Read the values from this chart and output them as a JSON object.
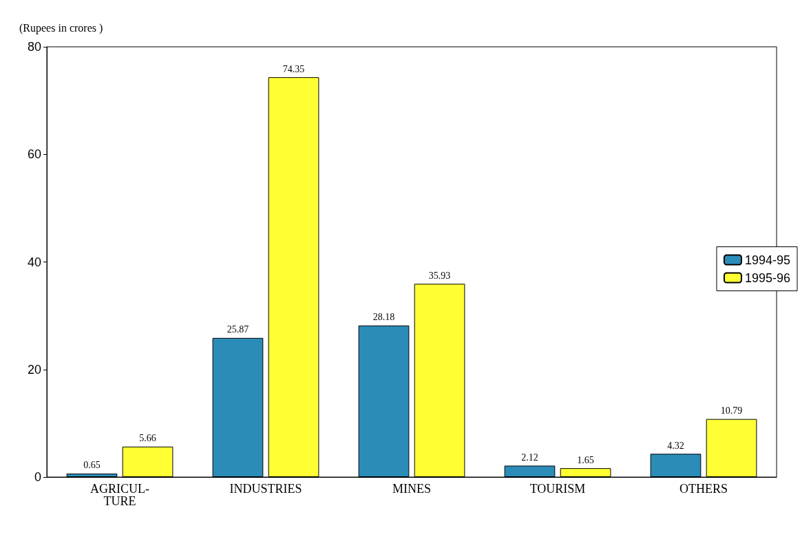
{
  "chart_data": {
    "type": "bar",
    "ylabel": "(Rupees in crores )",
    "categories": [
      "AGRICUL-\nTURE",
      "INDUSTRIES",
      "MINES",
      "TOURISM",
      "OTHERS"
    ],
    "series": [
      {
        "name": "1994-95",
        "color": "#2b8cb8",
        "values": [
          0.65,
          25.87,
          28.18,
          2.12,
          4.32
        ]
      },
      {
        "name": "1995-96",
        "color": "#ffff33",
        "values": [
          5.66,
          74.35,
          35.93,
          1.65,
          10.79
        ]
      }
    ],
    "ylim": [
      0,
      80
    ],
    "yticks": [
      0,
      20,
      40,
      60,
      80
    ],
    "grid": false,
    "legend": "right",
    "data_labels": true
  }
}
